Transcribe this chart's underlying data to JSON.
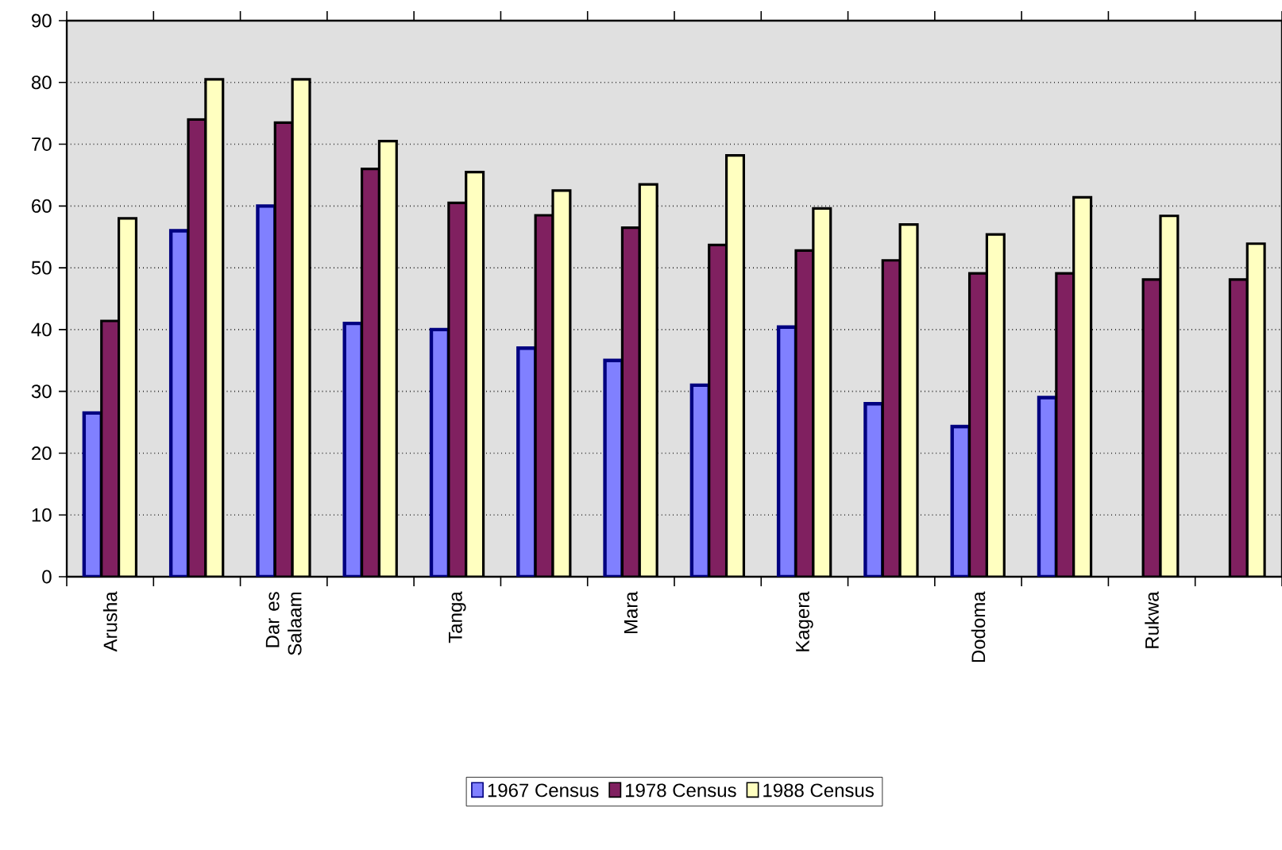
{
  "chart_data": {
    "type": "bar",
    "categories": [
      "Arusha",
      null,
      "Dar es Salaam",
      null,
      "Tanga",
      null,
      "Mara",
      null,
      "Kagera",
      null,
      "Dodoma",
      null,
      "Rukwa",
      null
    ],
    "series": [
      {
        "name": "1967 Census",
        "color": "#8080ff",
        "values": [
          26.5,
          56,
          60,
          41,
          40,
          37,
          35,
          31,
          40.4,
          28,
          24.3,
          29,
          null,
          null
        ]
      },
      {
        "name": "1978 Census",
        "color": "#802060",
        "values": [
          41.4,
          74,
          73.5,
          66,
          60.5,
          58.5,
          56.5,
          53.7,
          52.8,
          51.2,
          49.1,
          49.1,
          48.1,
          48.1
        ]
      },
      {
        "name": "1988 Census",
        "color": "#ffffc0",
        "values": [
          58,
          80.5,
          80.5,
          70.5,
          65.5,
          62.5,
          63.5,
          68.2,
          59.6,
          57,
          55.4,
          61.4,
          58.4,
          53.9
        ]
      }
    ],
    "ylim": [
      0,
      90
    ],
    "yticks": [
      0,
      10,
      20,
      30,
      40,
      50,
      60,
      70,
      80,
      90
    ],
    "grid": "y",
    "legend": "bottom"
  }
}
